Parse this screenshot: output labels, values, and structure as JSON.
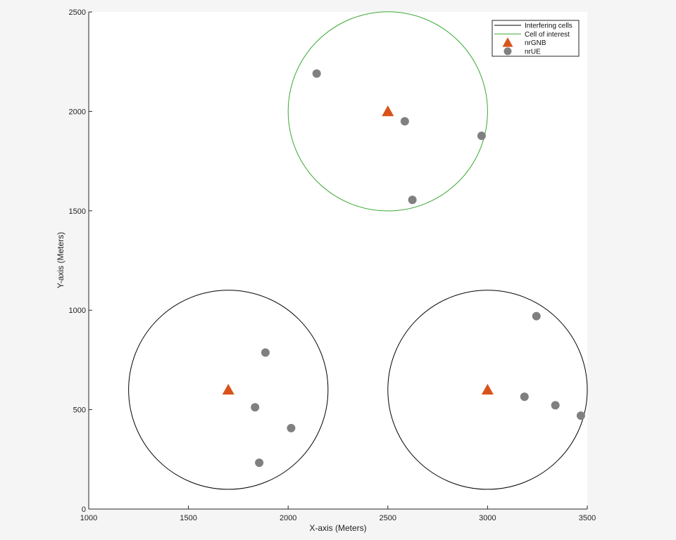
{
  "chart_data": {
    "type": "scatter",
    "xlabel": "X-axis (Meters)",
    "ylabel": "Y-axis (Meters)",
    "xlim": [
      1000,
      3500
    ],
    "ylim": [
      0,
      2500
    ],
    "xticks": [
      1000,
      1500,
      2000,
      2500,
      3000,
      3500
    ],
    "yticks": [
      0,
      500,
      1000,
      1500,
      2000,
      2500
    ],
    "grid": false,
    "legend_position": "top-right",
    "legend": [
      {
        "label": "Interfering cells",
        "symbol": "line",
        "color": "#000000"
      },
      {
        "label": "Cell of interest",
        "symbol": "line",
        "color": "#3aa832"
      },
      {
        "label": "nrGNB",
        "symbol": "triangle",
        "color": "#d95319"
      },
      {
        "label": "nrUE",
        "symbol": "circle",
        "color": "#808080"
      }
    ],
    "cells": [
      {
        "type": "Cell of interest",
        "center": [
          2500,
          2000
        ],
        "radius": 500,
        "color": "#3aa832"
      },
      {
        "type": "Interfering cells",
        "center": [
          1700,
          600
        ],
        "radius": 500,
        "color": "#000000"
      },
      {
        "type": "Interfering cells",
        "center": [
          3000,
          600
        ],
        "radius": 500,
        "color": "#000000"
      }
    ],
    "gnbs": [
      [
        2500,
        2000
      ],
      [
        1700,
        600
      ],
      [
        3000,
        600
      ]
    ],
    "ues": [
      [
        2143,
        2190
      ],
      [
        2585,
        1950
      ],
      [
        2970,
        1877
      ],
      [
        2623,
        1555
      ],
      [
        1886,
        787
      ],
      [
        1834,
        512
      ],
      [
        2015,
        407
      ],
      [
        1855,
        233
      ],
      [
        3245,
        970
      ],
      [
        3185,
        565
      ],
      [
        3340,
        522
      ],
      [
        3468,
        470
      ]
    ]
  }
}
